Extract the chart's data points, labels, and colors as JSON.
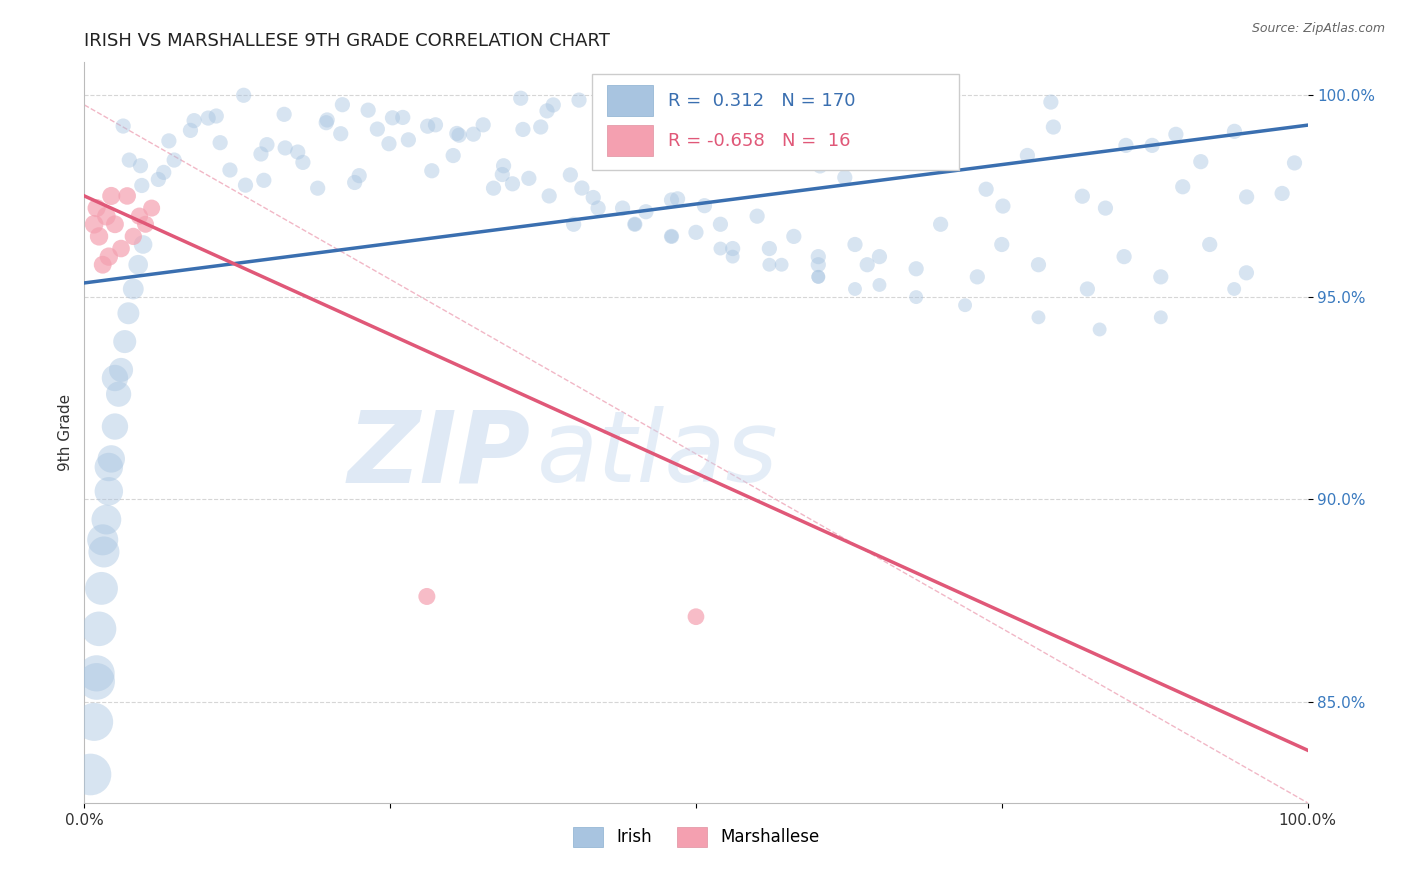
{
  "title": "IRISH VS MARSHALLESE 9TH GRADE CORRELATION CHART",
  "source_text": "Source: ZipAtlas.com",
  "ylabel": "9th Grade",
  "irish_R": 0.312,
  "irish_N": 170,
  "marshallese_R": -0.658,
  "marshallese_N": 16,
  "irish_color": "#a8c4e0",
  "irish_line_color": "#3a6fb0",
  "marshallese_color": "#f4a0b0",
  "marshallese_line_color": "#e05878",
  "ref_line_color": "#f0b0c0",
  "background_color": "#ffffff",
  "grid_color": "#cccccc",
  "xlim": [
    0.0,
    1.0
  ],
  "ylim": [
    0.825,
    1.008
  ],
  "yticks": [
    0.85,
    0.9,
    0.95,
    1.0
  ],
  "ytick_labels": [
    "85.0%",
    "90.0%",
    "95.0%",
    "100.0%"
  ],
  "irish_trend_x": [
    0.0,
    1.0
  ],
  "irish_trend_y": [
    0.9535,
    0.9925
  ],
  "marshallese_trend_x": [
    0.0,
    1.0
  ],
  "marshallese_trend_y": [
    0.975,
    0.838
  ],
  "ref_line_x": [
    0.0,
    1.0
  ],
  "ref_line_y": [
    0.9975,
    0.825
  ],
  "watermark_zip_color": "#c5d8ee",
  "watermark_atlas_color": "#c5d8ee"
}
